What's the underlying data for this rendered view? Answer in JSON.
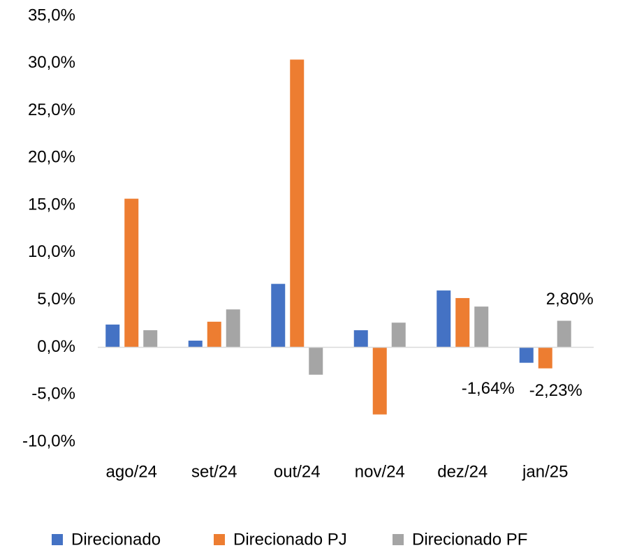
{
  "chart_data": {
    "type": "bar",
    "categories": [
      "ago/24",
      "set/24",
      "out/24",
      "nov/24",
      "dez/24",
      "jan/25"
    ],
    "series": [
      {
        "name": "Direcionado",
        "color": "#4472c4",
        "values": [
          2.4,
          0.7,
          6.7,
          1.8,
          6.0,
          -1.64
        ],
        "value_labels": [
          null,
          null,
          null,
          null,
          null,
          "-1,64%"
        ]
      },
      {
        "name": "Direcionado PJ",
        "color": "#ed7d31",
        "values": [
          15.7,
          2.7,
          30.4,
          -7.1,
          5.2,
          -2.23
        ],
        "value_labels": [
          null,
          null,
          null,
          null,
          null,
          "-2,23%"
        ]
      },
      {
        "name": "Direcionado PF",
        "color": "#a5a5a5",
        "values": [
          1.8,
          4.0,
          -2.9,
          2.6,
          4.3,
          2.8
        ],
        "value_labels": [
          null,
          null,
          null,
          null,
          null,
          "2,80%"
        ]
      }
    ],
    "ylim": [
      -10,
      35
    ],
    "yticks": [
      {
        "value": -10,
        "label": "-10,0%"
      },
      {
        "value": -5,
        "label": "-5,0%"
      },
      {
        "value": 0,
        "label": "0,0%"
      },
      {
        "value": 5,
        "label": "5,0%"
      },
      {
        "value": 10,
        "label": "10,0%"
      },
      {
        "value": 15,
        "label": "15,0%"
      },
      {
        "value": 20,
        "label": "20,0%"
      },
      {
        "value": 25,
        "label": "25,0%"
      },
      {
        "value": 30,
        "label": "30,0%"
      },
      {
        "value": 35,
        "label": "35,0%"
      }
    ],
    "grid": false,
    "legend": "bottom"
  }
}
